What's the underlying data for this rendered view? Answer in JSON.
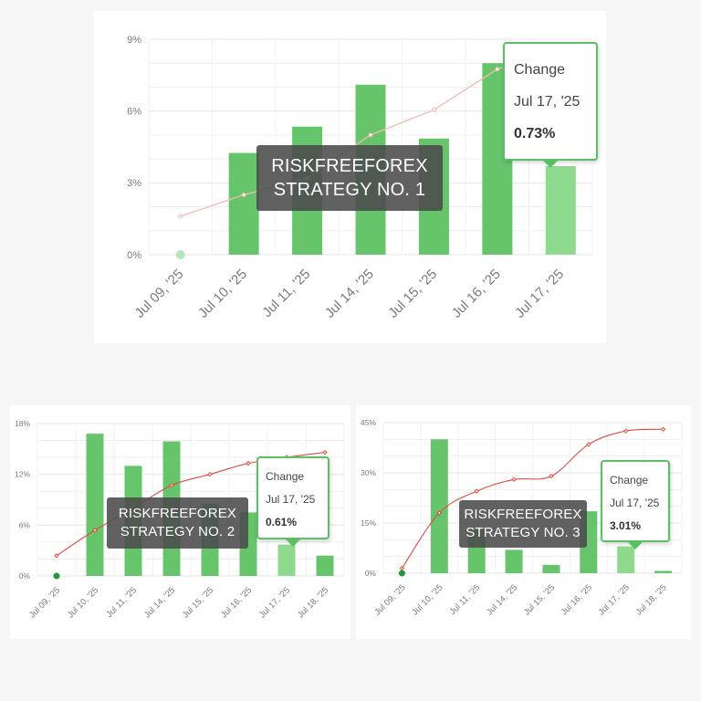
{
  "colors": {
    "bar": "#66c46b",
    "bar_highlight": "#8fd98f",
    "line_1": "#f4b9b5",
    "line_2_3": "#dd4b3f",
    "start_dot_1": "#b9e4bb",
    "start_dot": "#1e9a3a",
    "grid": "#e6e6e6",
    "tooltip_border": "#5cbf67"
  },
  "charts": [
    {
      "id": "chart1",
      "overlay": {
        "line1": "RISKFREEFOREX",
        "line2": "STRATEGY NO. 1"
      },
      "tooltip": {
        "label": "Change",
        "date": "Jul 17, '25",
        "value": "0.73%"
      }
    },
    {
      "id": "chart2",
      "overlay": {
        "line1": "RISKFREEFOREX",
        "line2": "STRATEGY NO. 2"
      },
      "tooltip": {
        "label": "Change",
        "date": "Jul 17, '25",
        "value": "0.61%"
      }
    },
    {
      "id": "chart3",
      "overlay": {
        "line1": "RISKFREEFOREX",
        "line2": "STRATEGY NO. 3"
      },
      "tooltip": {
        "label": "Change",
        "date": "Jul 17, '25",
        "value": "3.01%"
      }
    }
  ],
  "chart_data": [
    {
      "type": "bar",
      "title": "",
      "grid": true,
      "categories": [
        "Jul 09, '25",
        "Jul 10, '25",
        "Jul 11, '25",
        "Jul 14, '25",
        "Jul 15, '25",
        "Jul 16, '25",
        "Jul 17, '25"
      ],
      "ylim": [
        0,
        9
      ],
      "yticks": [
        "0%",
        "3%",
        "6%",
        "9%"
      ],
      "series": [
        {
          "type": "bar",
          "values": [
            0,
            4.25,
            5.35,
            7.1,
            4.85,
            8.0,
            3.7
          ]
        },
        {
          "type": "line",
          "values": [
            1.6,
            2.5,
            3.2,
            5.0,
            6.05,
            7.75,
            8.6
          ]
        }
      ],
      "highlight_index": 6
    },
    {
      "type": "bar",
      "title": "",
      "grid": true,
      "categories": [
        "Jul 09, '25",
        "Jul 10, '25",
        "Jul 11, '25",
        "Jul 14, '25",
        "Jul 15, '25",
        "Jul 16, '25",
        "Jul 17, '25",
        "Jul 18, '25"
      ],
      "ylim": [
        0,
        18
      ],
      "yticks": [
        "0%",
        "6%",
        "12%",
        "18%"
      ],
      "series": [
        {
          "type": "bar",
          "values": [
            0,
            16.8,
            13.0,
            15.9,
            8.5,
            7.5,
            3.7,
            2.4
          ]
        },
        {
          "type": "line",
          "values": [
            2.4,
            5.4,
            8.0,
            10.7,
            12.0,
            13.3,
            14.0,
            14.6
          ]
        }
      ],
      "highlight_index": 6
    },
    {
      "type": "bar",
      "title": "",
      "grid": true,
      "categories": [
        "Jul 09, '25",
        "Jul 10, '25",
        "Jul 11, '25",
        "Jul 14, '25",
        "Jul 15, '25",
        "Jul 16, '25",
        "Jul 17, '25",
        "Jul 18, '25"
      ],
      "ylim": [
        0,
        45
      ],
      "yticks": [
        "0%",
        "15%",
        "30%",
        "45%"
      ],
      "series": [
        {
          "type": "bar",
          "values": [
            0,
            40.0,
            13.0,
            7.0,
            2.5,
            18.5,
            8.0,
            0.7
          ]
        },
        {
          "type": "line",
          "values": [
            1.5,
            18.0,
            24.5,
            28.0,
            29.0,
            38.5,
            42.5,
            43.0
          ]
        }
      ],
      "highlight_index": 6
    }
  ]
}
